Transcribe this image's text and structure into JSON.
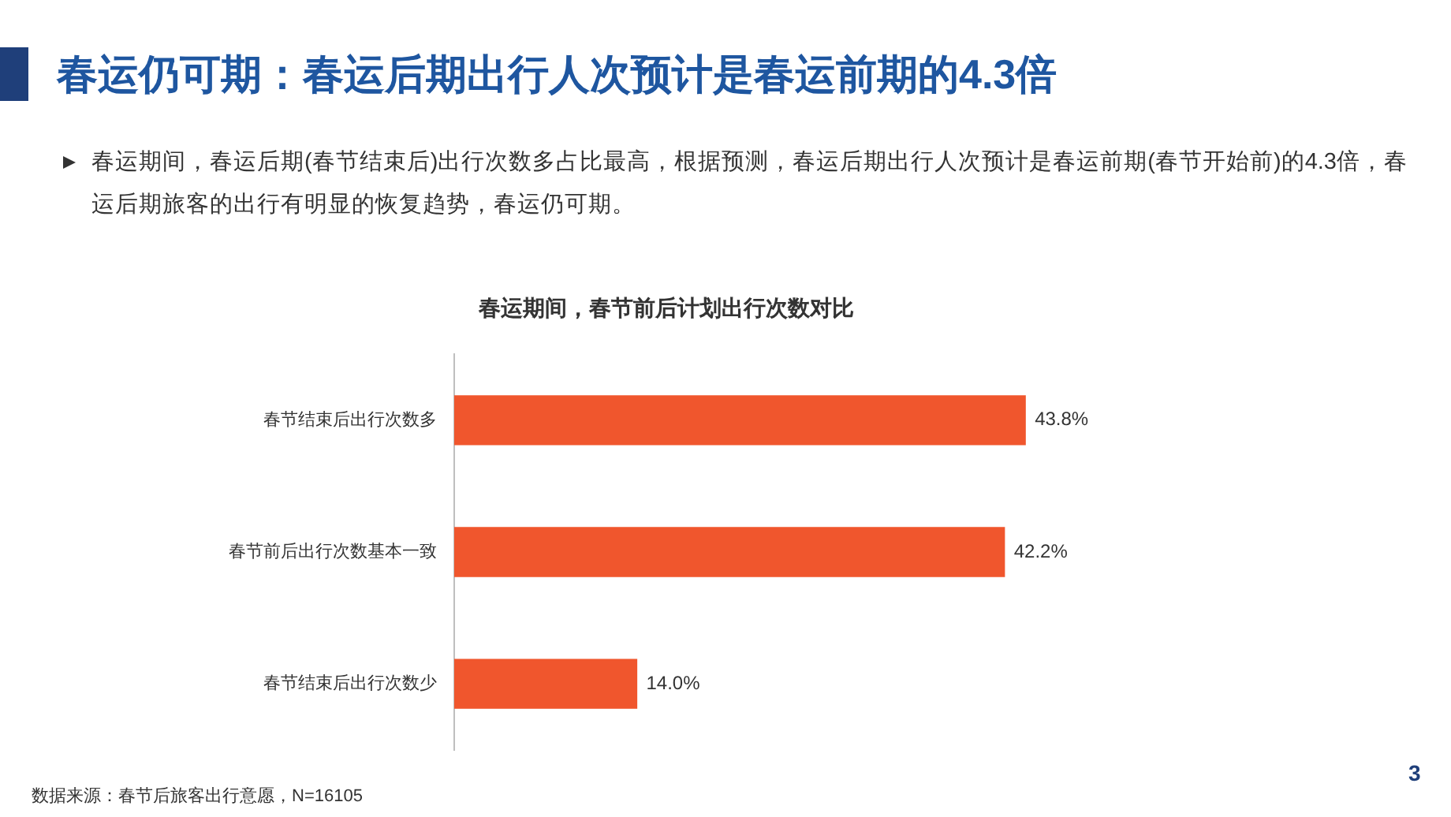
{
  "chart_data": {
    "type": "bar",
    "orientation": "horizontal",
    "title": "春运仍可期：春运后期出行人次预计是春运前期的4.3倍",
    "subtitle": "春运期间，春节前后计划出行次数对比",
    "categories": [
      "春节结束后出行次数多",
      "春节前后出行次数基本一致",
      "春节结束后出行次数少"
    ],
    "values": [
      43.8,
      42.2,
      14.0
    ],
    "value_labels": [
      "43.8%",
      "42.2%",
      "14.0%"
    ],
    "color": "#f0562d",
    "annotations": [
      "春运期间，春运后期(春节结束后)出行次数多占比最高，根据预测，春运后期出行人次预计是春运前期(春节开始前)的4.3倍，春运后期旅客的出行有明显的恢复趋势，春运仍可期。",
      "数据来源：春节后旅客出行意愿，N=16105",
      "3"
    ]
  }
}
